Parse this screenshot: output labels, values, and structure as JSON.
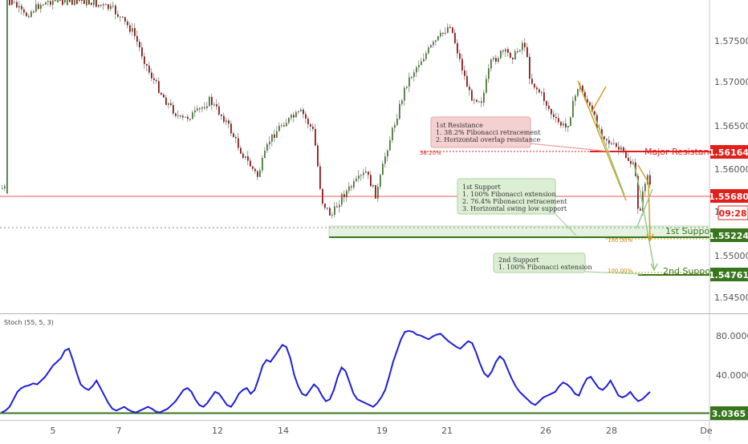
{
  "chart_data": {
    "type": "candlestick",
    "price_axis": {
      "ticks": [
        "1.57500",
        "1.57000",
        "1.56500",
        "1.56000",
        "1.55500",
        "1.55000",
        "1.54500"
      ],
      "truncated_tick": "1"
    },
    "x_ticks": [
      "5",
      "7",
      "12",
      "14",
      "19",
      "21",
      "26",
      "28",
      "De"
    ],
    "price_labels": [
      {
        "text": "1.56164",
        "color": "#e0201b"
      },
      {
        "text": "1.55680",
        "color": "#e0201b"
      },
      {
        "text": "09:28",
        "color": "#e0201b"
      },
      {
        "text": "1.55224",
        "color": "#38761d"
      },
      {
        "text": "1.54761",
        "color": "#38761d"
      }
    ],
    "levels": [
      {
        "label": "Major Resistance",
        "price": 1.56164,
        "color": "#e0201b"
      },
      {
        "label": "1st Support",
        "price": 1.55224,
        "color": "#38761d"
      },
      {
        "label": "2nd Support",
        "price": 1.54761,
        "color": "#38761d"
      }
    ],
    "current_price": 1.5568,
    "fib_labels": [
      "38.20%",
      "100.00%",
      "100.00%"
    ],
    "notes": [
      {
        "id": "res",
        "lines": [
          "1st Resistance",
          "1. 38.2% Fibonacci retracement",
          "2. Horizontal overlap resistance"
        ]
      },
      {
        "id": "s1",
        "lines": [
          "1st Support",
          "1. 100% Fibonacci extension",
          "2. 76.4% Fibonacci retracement",
          "3. Horizontal swing low support"
        ]
      },
      {
        "id": "s2",
        "lines": [
          "2nd Support",
          "1. 100% Fibonacci extension"
        ]
      }
    ],
    "oscillator": {
      "name": "Stoch (55, 5, 3)",
      "axis_ticks": [
        "80.0000",
        "40.0000"
      ],
      "marker_label": "3.0365",
      "line_color": "#1e1edc",
      "values": [
        2,
        4,
        8,
        16,
        24,
        28,
        30,
        31,
        33,
        32,
        36,
        40,
        46,
        52,
        56,
        60,
        68,
        70,
        58,
        44,
        32,
        28,
        26,
        30,
        36,
        28,
        20,
        12,
        6,
        4,
        6,
        8,
        5,
        3,
        2,
        4,
        6,
        8,
        6,
        3,
        2,
        4,
        6,
        10,
        14,
        20,
        26,
        28,
        24,
        16,
        10,
        8,
        12,
        18,
        24,
        22,
        16,
        10,
        8,
        14,
        22,
        26,
        28,
        22,
        26,
        38,
        52,
        58,
        56,
        62,
        68,
        74,
        72,
        60,
        42,
        30,
        22,
        20,
        26,
        32,
        28,
        20,
        14,
        16,
        26,
        40,
        50,
        46,
        34,
        22,
        16,
        14,
        12,
        10,
        8,
        12,
        18,
        26,
        40,
        56,
        68,
        80,
        88,
        89,
        88,
        85,
        84,
        82,
        80,
        83,
        85,
        86,
        82,
        78,
        75,
        72,
        70,
        74,
        78,
        76,
        66,
        54,
        44,
        40,
        46,
        56,
        62,
        58,
        48,
        38,
        30,
        24,
        20,
        16,
        12,
        10,
        14,
        18,
        20,
        22,
        24,
        30,
        34,
        32,
        28,
        22,
        20,
        30,
        38,
        40,
        34,
        28,
        26,
        30,
        36,
        28,
        20,
        18,
        20,
        24,
        18,
        14,
        16,
        20,
        24
      ]
    }
  }
}
